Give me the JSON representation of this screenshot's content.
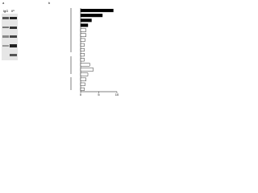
{
  "panel_a": {
    "label": "a",
    "lanes": [
      "IgG",
      "IP"
    ]
  },
  "panel_b": {
    "label": "b",
    "chart_data": {
      "type": "hbar",
      "categories": [
        null,
        null,
        null,
        null,
        null,
        null,
        null,
        null,
        null,
        null,
        null,
        null,
        null,
        null,
        null,
        null,
        null
      ],
      "values": [
        9,
        6,
        3,
        2,
        1.5,
        1.5,
        1.2,
        1,
        1,
        1,
        1,
        2.5,
        3.5,
        2,
        1.5,
        1.2,
        1
      ],
      "colors": [
        "#000000",
        "#000000",
        "#000000",
        "#000000",
        "#ffffff",
        "#ffffff",
        "#ffffff",
        "#ffffff",
        "#ffffff",
        "#ffffff",
        "#ffffff",
        "#ffffff",
        "#ffffff",
        "#ffffff",
        "#ffffff",
        "#ffffff",
        "#ffffff"
      ],
      "xlim": [
        0,
        10
      ],
      "xticks": [
        0,
        5,
        10
      ]
    }
  }
}
